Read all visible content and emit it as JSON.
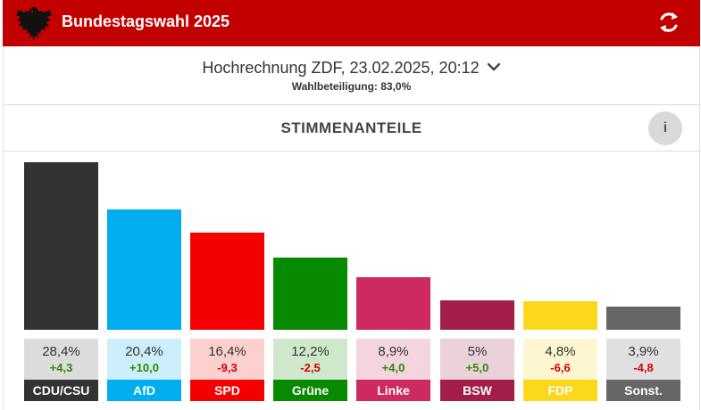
{
  "header": {
    "title": "Bundestagswahl 2025"
  },
  "selector": {
    "label": "Hochrechnung ZDF, 23.02.2025, 20:12",
    "turnout": "Wahlbeteiligung: 83,0%"
  },
  "section": {
    "title": "STIMMENANTEILE",
    "info_label": "i"
  },
  "icons": {
    "logo": "federal-eagle-icon",
    "refresh": "refresh-icon",
    "dropdown": "chevron-down-icon",
    "info": "info-icon"
  },
  "colors": {
    "header_bg": "#c30000",
    "positive": "#2e8b00",
    "negative": "#d40000"
  },
  "chart_data": {
    "type": "bar",
    "categories": [
      "CDU/CSU",
      "AfD",
      "SPD",
      "Grüne",
      "Linke",
      "BSW",
      "FDP",
      "Sonst."
    ],
    "values": [
      28.4,
      20.4,
      16.4,
      12.2,
      8.9,
      5,
      4.8,
      3.9
    ],
    "value_labels": [
      "28,4%",
      "20,4%",
      "16,4%",
      "12,2%",
      "8,9%",
      "5%",
      "4,8%",
      "3,9%"
    ],
    "diff_labels": [
      "+4,3",
      "+10,0",
      "-9,3",
      "-2,5",
      "+4,0",
      "+5,0",
      "-6,6",
      "-4,8"
    ],
    "diff_values": [
      4.3,
      10.0,
      -9.3,
      -2.5,
      4.0,
      5.0,
      -6.6,
      -4.8
    ],
    "colors": [
      "#333333",
      "#00aeef",
      "#f50000",
      "#088a00",
      "#cc2a61",
      "#a21e49",
      "#fcd81c",
      "#666666"
    ],
    "light_colors": [
      "#dcdcdc",
      "#cdeffb",
      "#fdd0d0",
      "#cfe8cc",
      "#f4d4df",
      "#ebd1da",
      "#fef6d0",
      "#e0e0e0"
    ],
    "label_text_colors": [
      "#ffffff",
      "#ffffff",
      "#ffffff",
      "#ffffff",
      "#ffffff",
      "#ffffff",
      "#ffffff",
      "#ffffff"
    ],
    "title": "STIMMENANTEILE",
    "xlabel": "",
    "ylabel": "",
    "ylim": [
      0,
      28.4
    ]
  }
}
